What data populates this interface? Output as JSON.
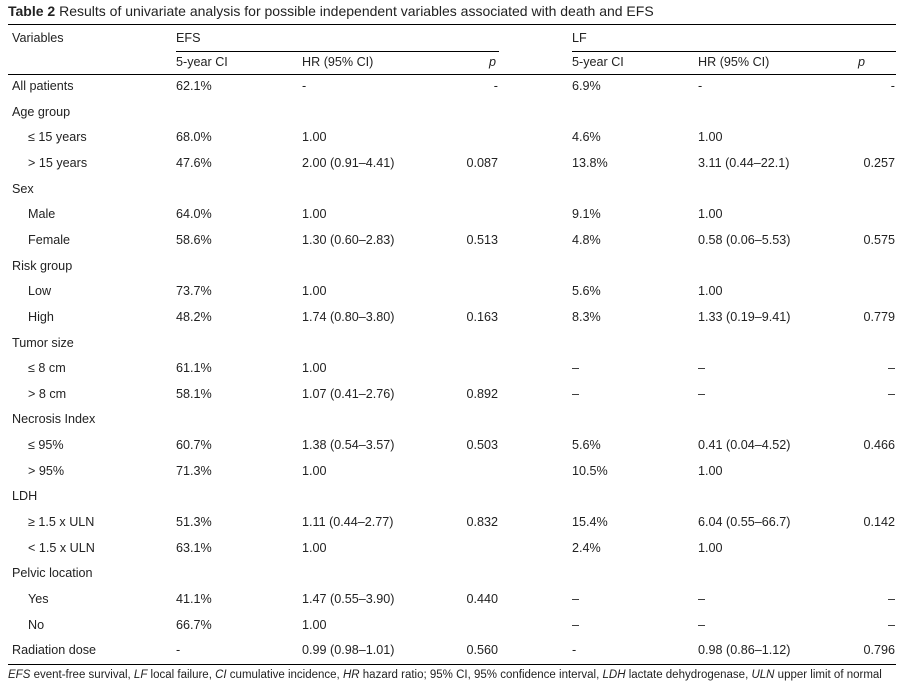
{
  "caption": {
    "label": "Table 2",
    "text": "Results of univariate analysis for possible independent variables associated with death and EFS"
  },
  "headers": {
    "variables": "Variables",
    "efs": "EFS",
    "lf": "LF",
    "efs_cols": [
      "5-year CI",
      "HR (95% CI)",
      "p"
    ],
    "lf_cols": [
      "5-year CI",
      "HR (95% CI)",
      "p"
    ]
  },
  "rows": [
    {
      "label": "All patients",
      "indent": false,
      "efs_ci": "62.1%",
      "efs_hr": "-",
      "efs_p": "-",
      "lf_ci": "6.9%",
      "lf_hr": "-",
      "lf_p": "-"
    },
    {
      "label": "Age group",
      "indent": false,
      "efs_ci": "",
      "efs_hr": "",
      "efs_p": "",
      "lf_ci": "",
      "lf_hr": "",
      "lf_p": ""
    },
    {
      "label": "≤ 15 years",
      "indent": true,
      "efs_ci": "68.0%",
      "efs_hr": "1.00",
      "efs_p": "",
      "lf_ci": "4.6%",
      "lf_hr": "1.00",
      "lf_p": ""
    },
    {
      "label": "> 15 years",
      "indent": true,
      "efs_ci": "47.6%",
      "efs_hr": "2.00 (0.91–4.41)",
      "efs_p": "0.087",
      "lf_ci": "13.8%",
      "lf_hr": "3.11 (0.44–22.1)",
      "lf_p": "0.257"
    },
    {
      "label": "Sex",
      "indent": false,
      "efs_ci": "",
      "efs_hr": "",
      "efs_p": "",
      "lf_ci": "",
      "lf_hr": "",
      "lf_p": ""
    },
    {
      "label": "Male",
      "indent": true,
      "efs_ci": "64.0%",
      "efs_hr": "1.00",
      "efs_p": "",
      "lf_ci": "9.1%",
      "lf_hr": "1.00",
      "lf_p": ""
    },
    {
      "label": "Female",
      "indent": true,
      "efs_ci": "58.6%",
      "efs_hr": "1.30 (0.60–2.83)",
      "efs_p": "0.513",
      "lf_ci": "4.8%",
      "lf_hr": "0.58 (0.06–5.53)",
      "lf_p": "0.575"
    },
    {
      "label": "Risk group",
      "indent": false,
      "efs_ci": "",
      "efs_hr": "",
      "efs_p": "",
      "lf_ci": "",
      "lf_hr": "",
      "lf_p": ""
    },
    {
      "label": "Low",
      "indent": true,
      "efs_ci": "73.7%",
      "efs_hr": "1.00",
      "efs_p": "",
      "lf_ci": "5.6%",
      "lf_hr": "1.00",
      "lf_p": ""
    },
    {
      "label": "High",
      "indent": true,
      "efs_ci": "48.2%",
      "efs_hr": "1.74 (0.80–3.80)",
      "efs_p": "0.163",
      "lf_ci": "8.3%",
      "lf_hr": "1.33 (0.19–9.41)",
      "lf_p": "0.779"
    },
    {
      "label": "Tumor size",
      "indent": false,
      "efs_ci": "",
      "efs_hr": "",
      "efs_p": "",
      "lf_ci": "",
      "lf_hr": "",
      "lf_p": ""
    },
    {
      "label": "≤ 8 cm",
      "indent": true,
      "efs_ci": "61.1%",
      "efs_hr": "1.00",
      "efs_p": "",
      "lf_ci": "–",
      "lf_hr": "–",
      "lf_p": "–"
    },
    {
      "label": "> 8 cm",
      "indent": true,
      "efs_ci": "58.1%",
      "efs_hr": "1.07 (0.41–2.76)",
      "efs_p": "0.892",
      "lf_ci": "–",
      "lf_hr": "–",
      "lf_p": "–"
    },
    {
      "label": "Necrosis Index",
      "indent": false,
      "efs_ci": "",
      "efs_hr": "",
      "efs_p": "",
      "lf_ci": "",
      "lf_hr": "",
      "lf_p": ""
    },
    {
      "label": "≤ 95%",
      "indent": true,
      "efs_ci": "60.7%",
      "efs_hr": "1.38 (0.54–3.57)",
      "efs_p": "0.503",
      "lf_ci": "5.6%",
      "lf_hr": "0.41 (0.04–4.52)",
      "lf_p": "0.466"
    },
    {
      "label": "> 95%",
      "indent": true,
      "efs_ci": "71.3%",
      "efs_hr": "1.00",
      "efs_p": "",
      "lf_ci": "10.5%",
      "lf_hr": "1.00",
      "lf_p": ""
    },
    {
      "label": "LDH",
      "indent": false,
      "efs_ci": "",
      "efs_hr": "",
      "efs_p": "",
      "lf_ci": "",
      "lf_hr": "",
      "lf_p": ""
    },
    {
      "label": "≥ 1.5 x ULN",
      "indent": true,
      "efs_ci": "51.3%",
      "efs_hr": "1.11 (0.44–2.77)",
      "efs_p": "0.832",
      "lf_ci": "15.4%",
      "lf_hr": "6.04 (0.55–66.7)",
      "lf_p": "0.142"
    },
    {
      "label": "< 1.5 x ULN",
      "indent": true,
      "efs_ci": "63.1%",
      "efs_hr": "1.00",
      "efs_p": "",
      "lf_ci": "2.4%",
      "lf_hr": "1.00",
      "lf_p": ""
    },
    {
      "label": "Pelvic location",
      "indent": false,
      "efs_ci": "",
      "efs_hr": "",
      "efs_p": "",
      "lf_ci": "",
      "lf_hr": "",
      "lf_p": ""
    },
    {
      "label": "Yes",
      "indent": true,
      "efs_ci": "41.1%",
      "efs_hr": "1.47 (0.55–3.90)",
      "efs_p": "0.440",
      "lf_ci": "–",
      "lf_hr": "–",
      "lf_p": "–"
    },
    {
      "label": "No",
      "indent": true,
      "efs_ci": "66.7%",
      "efs_hr": "1.00",
      "efs_p": "",
      "lf_ci": "–",
      "lf_hr": "–",
      "lf_p": "–"
    },
    {
      "label": "Radiation dose",
      "indent": false,
      "efs_ci": "-",
      "efs_hr": "0.99 (0.98–1.01)",
      "efs_p": "0.560",
      "lf_ci": "-",
      "lf_hr": "0.98 (0.86–1.12)",
      "lf_p": "0.796"
    }
  ],
  "footnote": [
    {
      "abbr": "EFS",
      "text": " event-free survival, "
    },
    {
      "abbr": "LF",
      "text": " local failure, "
    },
    {
      "abbr": "CI",
      "text": " cumulative incidence, "
    },
    {
      "abbr": "HR",
      "text": " hazard ratio; 95% CI, 95% confidence interval, "
    },
    {
      "abbr": "LDH",
      "text": " lactate dehydrogenase, "
    },
    {
      "abbr": "ULN",
      "text": " upper limit of normal"
    }
  ]
}
